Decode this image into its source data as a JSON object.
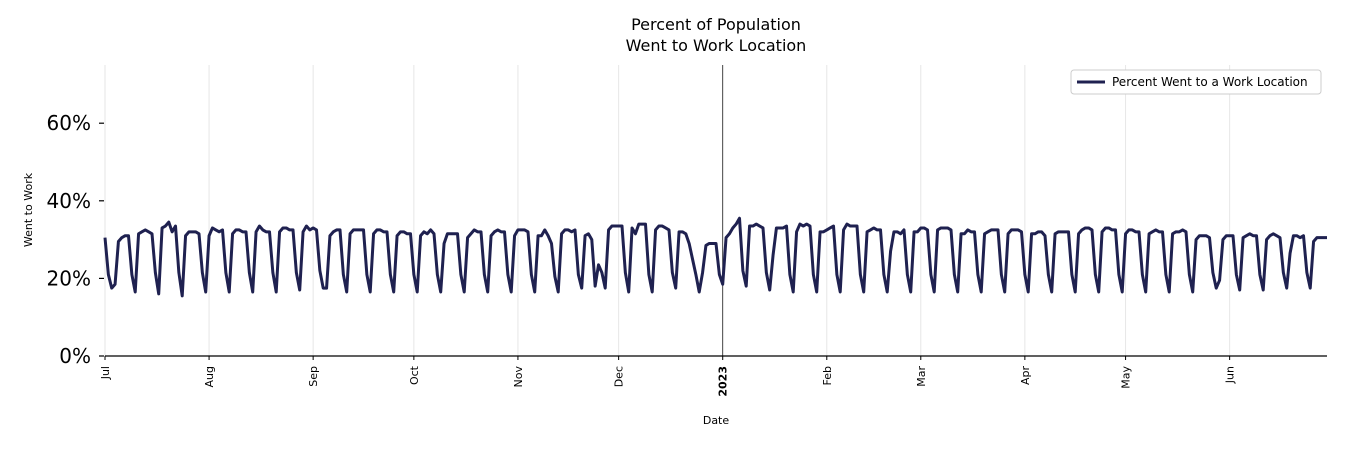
{
  "chart_data": {
    "type": "line",
    "title_line1": "Percent of Population",
    "title_line2": "Went to Work Location",
    "xlabel": "Date",
    "ylabel": "Went to Work",
    "ylim": [
      0,
      75
    ],
    "yticks": [
      0,
      20,
      40,
      60
    ],
    "ytick_labels": [
      "0%",
      "20%",
      "40%",
      "60%"
    ],
    "xlim": [
      "2022-07-01",
      "2023-06-30"
    ],
    "x_ticks": [
      {
        "date": "2022-07-01",
        "label": "Jul",
        "bold": false
      },
      {
        "date": "2022-08-01",
        "label": "Aug",
        "bold": false
      },
      {
        "date": "2022-09-01",
        "label": "Sep",
        "bold": false
      },
      {
        "date": "2022-10-01",
        "label": "Oct",
        "bold": false
      },
      {
        "date": "2022-11-01",
        "label": "Nov",
        "bold": false
      },
      {
        "date": "2022-12-01",
        "label": "Dec",
        "bold": false
      },
      {
        "date": "2023-01-01",
        "label": "2023",
        "bold": true
      },
      {
        "date": "2023-02-01",
        "label": "Feb",
        "bold": false
      },
      {
        "date": "2023-03-01",
        "label": "Mar",
        "bold": false
      },
      {
        "date": "2023-04-01",
        "label": "Apr",
        "bold": false
      },
      {
        "date": "2023-05-01",
        "label": "May",
        "bold": false
      },
      {
        "date": "2023-06-01",
        "label": "Jun",
        "bold": false
      }
    ],
    "vline_date": "2023-01-01",
    "grid": "vertical",
    "legend_position": "top-right",
    "series": [
      {
        "name": "Percent Went to a Work Location",
        "color": "#1f2150",
        "start_date": "2022-07-01",
        "values": [
          30.5,
          21,
          17.5,
          18.5,
          29.5,
          30.5,
          31,
          31,
          21,
          16.5,
          31.5,
          32,
          32.5,
          32,
          31.5,
          21.5,
          16,
          33,
          33.5,
          34.5,
          32,
          33.5,
          21.5,
          15.5,
          31,
          32,
          32,
          32,
          31.5,
          21.5,
          16.5,
          31,
          33,
          32.5,
          32,
          32.5,
          21.5,
          16.5,
          31.5,
          32.5,
          32.5,
          32,
          32,
          21.5,
          16.5,
          32,
          33.5,
          32.5,
          32,
          32,
          21.5,
          16.5,
          32,
          33,
          33,
          32.5,
          32.5,
          21.5,
          17,
          32,
          33.5,
          32.5,
          33,
          32.5,
          22,
          17.5,
          17.5,
          31,
          32,
          32.5,
          32.5,
          21,
          16.5,
          31.5,
          32.5,
          32.5,
          32.5,
          32.5,
          21,
          16.5,
          31.5,
          32.5,
          32.5,
          32,
          32,
          21,
          16.5,
          31,
          32,
          32,
          31.5,
          31.5,
          21,
          16.5,
          31,
          32,
          31.5,
          32.5,
          31.5,
          21,
          16.5,
          29,
          31.5,
          31.5,
          31.5,
          31.5,
          21,
          16.5,
          30.5,
          31.5,
          32.5,
          32,
          32,
          21,
          16.5,
          31,
          32,
          32.5,
          32,
          32,
          21,
          16.5,
          31,
          32.5,
          32.5,
          32.5,
          32,
          21,
          16.5,
          31,
          31,
          32.5,
          31,
          29,
          20.5,
          16.5,
          31.5,
          32.5,
          32.5,
          32,
          32.5,
          21,
          17.5,
          31,
          31.5,
          30,
          18,
          23.5,
          21.5,
          17.5,
          32.5,
          33.5,
          33.5,
          33.5,
          33.5,
          21.5,
          16.5,
          33,
          31.5,
          34,
          34,
          34,
          21,
          16.5,
          32.5,
          33.5,
          33.5,
          33,
          32.5,
          21.5,
          17.5,
          32,
          32,
          31.5,
          29,
          25,
          21,
          16.5,
          21.5,
          28.5,
          29,
          29,
          29,
          21,
          18.5,
          30.5,
          31.5,
          33,
          34,
          35.5,
          22,
          18,
          33.5,
          33.5,
          34,
          33.5,
          33,
          21.5,
          17,
          26,
          33,
          33,
          33,
          33.5,
          21,
          16.5,
          32,
          34,
          33.5,
          34,
          33.5,
          21,
          16.5,
          32,
          32,
          32.5,
          33,
          33.5,
          21,
          16.5,
          32.5,
          34,
          33.5,
          33.5,
          33.5,
          21,
          16.5,
          32,
          32.5,
          33,
          32.5,
          32.5,
          21,
          16.5,
          27,
          32,
          32,
          31.5,
          32.5,
          21,
          16.5,
          32,
          32,
          33,
          33,
          32.5,
          21,
          16.5,
          32.5,
          33,
          33,
          33,
          32.5,
          21,
          16.5,
          31.5,
          31.5,
          32.5,
          32,
          32,
          21,
          16.5,
          31.5,
          32,
          32.5,
          32.5,
          32.5,
          21,
          16.5,
          31.5,
          32.5,
          32.5,
          32.5,
          32,
          21,
          16.5,
          31.5,
          31.5,
          32,
          32,
          31,
          21,
          16.5,
          31.5,
          32,
          32,
          32,
          32,
          21,
          16.5,
          31.5,
          32.5,
          33,
          33,
          32.5,
          21,
          16.5,
          32,
          33,
          33,
          32.5,
          32.5,
          21,
          16.5,
          31.5,
          32.5,
          32.5,
          32,
          32,
          21,
          16.5,
          31.5,
          32,
          32.5,
          32,
          32,
          21,
          16.5,
          31.5,
          32,
          32,
          32.5,
          32,
          21,
          16.5,
          30,
          31,
          31,
          31,
          30.5,
          21.5,
          17.5,
          19.5,
          30,
          31,
          31,
          31,
          21,
          17,
          30.5,
          31,
          31.5,
          31,
          31,
          21,
          17,
          30,
          31,
          31.5,
          31,
          30.5,
          21.5,
          17.5,
          26.5,
          31,
          31,
          30.5,
          31,
          21.5,
          17.5,
          29.5,
          30.5,
          30.5,
          30.5,
          30.5
        ]
      }
    ]
  }
}
